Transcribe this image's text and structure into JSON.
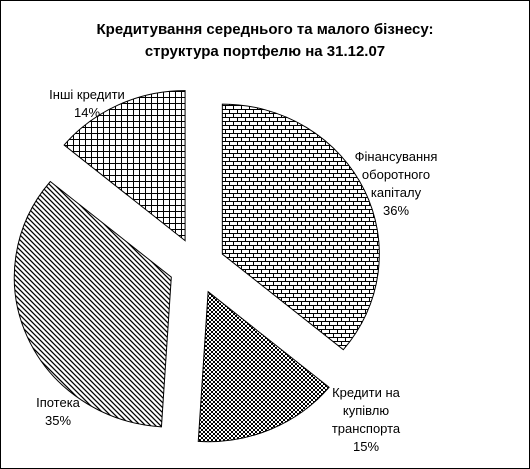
{
  "chart_data": {
    "type": "pie",
    "title": [
      "Кредитування середнього та малого бізнесу:",
      "структура портфелю на 31.12.07"
    ],
    "slices": [
      {
        "label": [
          "Фінансування",
          "оборотного",
          "капіталу"
        ],
        "value": 36,
        "value_label": "36%",
        "pattern": "brick"
      },
      {
        "label": [
          "Кредити на",
          "купівлю",
          "транспорта"
        ],
        "value": 15,
        "value_label": "15%",
        "pattern": "checker"
      },
      {
        "label": [
          "Іпотека"
        ],
        "value": 35,
        "value_label": "35%",
        "pattern": "diagonal"
      },
      {
        "label": [
          "Інші кредити"
        ],
        "value": 14,
        "value_label": "14%",
        "pattern": "grid"
      }
    ],
    "legend": "none",
    "exploded": true
  }
}
